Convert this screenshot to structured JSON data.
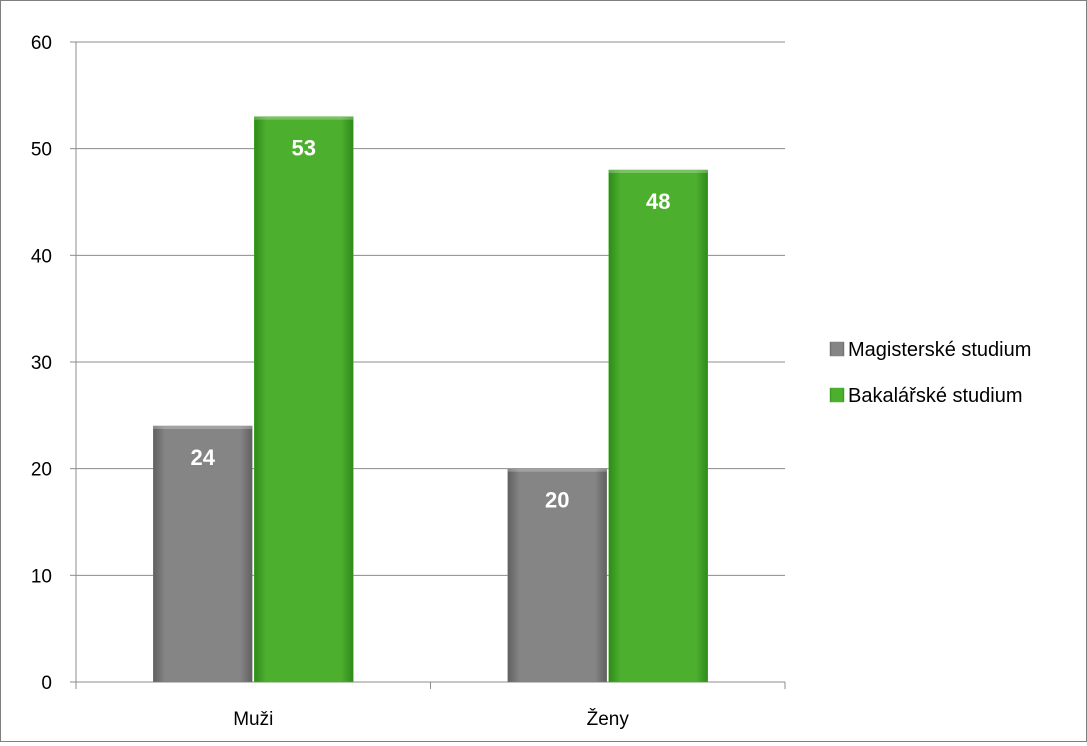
{
  "chart_data": {
    "type": "bar",
    "categories": [
      "Muži",
      "Ženy"
    ],
    "series": [
      {
        "name": "Magisterské studium",
        "values": [
          24,
          20
        ],
        "color": "#808080"
      },
      {
        "name": "Bakalářské studium",
        "values": [
          53,
          48
        ],
        "color": "#4caf2e"
      }
    ],
    "ylim": [
      0,
      60
    ],
    "yticks": [
      "0",
      "10",
      "20",
      "30",
      "40",
      "50",
      "60"
    ],
    "grid": true,
    "legend_position": "right",
    "data_label_color": "#ffffff"
  }
}
